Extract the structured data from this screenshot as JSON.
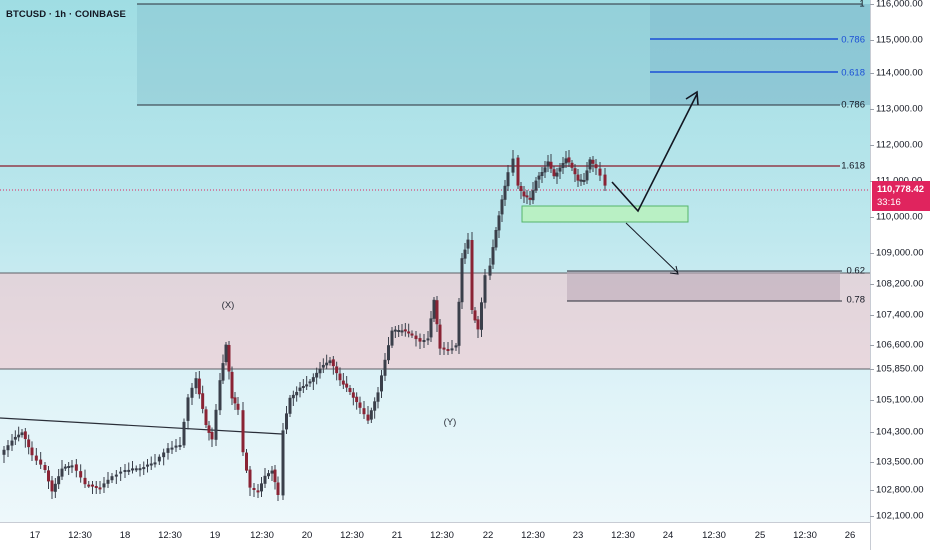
{
  "header": {
    "symbol": "BTCUSD · 1h · COINBASE"
  },
  "price_axis": {
    "labels": [
      "116,000.00",
      "115,000.00",
      "114,000.00",
      "113,000.00",
      "112,000.00",
      "111,000.00",
      "110,000.00",
      "109,000.00",
      "108,200.00",
      "107,400.00",
      "106,600.00",
      "105,850.00",
      "105,100.00",
      "104,300.00",
      "103,500.00",
      "102,800.00",
      "102,100.00"
    ]
  },
  "time_axis": {
    "labels": [
      "17",
      "12:30",
      "18",
      "12:30",
      "19",
      "12:30",
      "20",
      "12:30",
      "21",
      "12:30",
      "22",
      "12:30",
      "23",
      "12:30",
      "24",
      "12:30",
      "25",
      "12:30",
      "26"
    ]
  },
  "current_price": {
    "value": "110,778.42",
    "countdown": "33:16"
  },
  "fib_levels": {
    "top_one": "1",
    "top_0786": "0.786",
    "top_0618": "0.618",
    "box_0786": "0.786",
    "level_1618": "1.618",
    "lower_062": "0.62",
    "lower_078": "0.78"
  },
  "wave_labels": {
    "x": "(X)",
    "y": "(Y)"
  },
  "colors": {
    "bull": "#26a69a",
    "bear": "#ef5350",
    "candle": "#3a3f4a",
    "resistance": "#8b1a2b",
    "fib_blue": "#1a4fd6",
    "pink_zone": "#f3c9cf",
    "price_tag": "#e0245e"
  },
  "chart_data": {
    "type": "candlestick",
    "symbol": "BTCUSD",
    "interval": "1h",
    "exchange": "COINBASE",
    "ylim": [
      102000,
      116100
    ],
    "current_price": 110778.42,
    "levels": [
      {
        "label": "1",
        "price": 116100
      },
      {
        "label": "0.786",
        "price": 115050
      },
      {
        "label": "0.618",
        "price": 114050
      },
      {
        "label": "0.786",
        "price": 113100
      },
      {
        "label": "1.618",
        "price": 111400
      },
      {
        "label": "0.62",
        "price": 108500
      },
      {
        "label": "0.78",
        "price": 107700
      }
    ],
    "candle_count": 148
  }
}
